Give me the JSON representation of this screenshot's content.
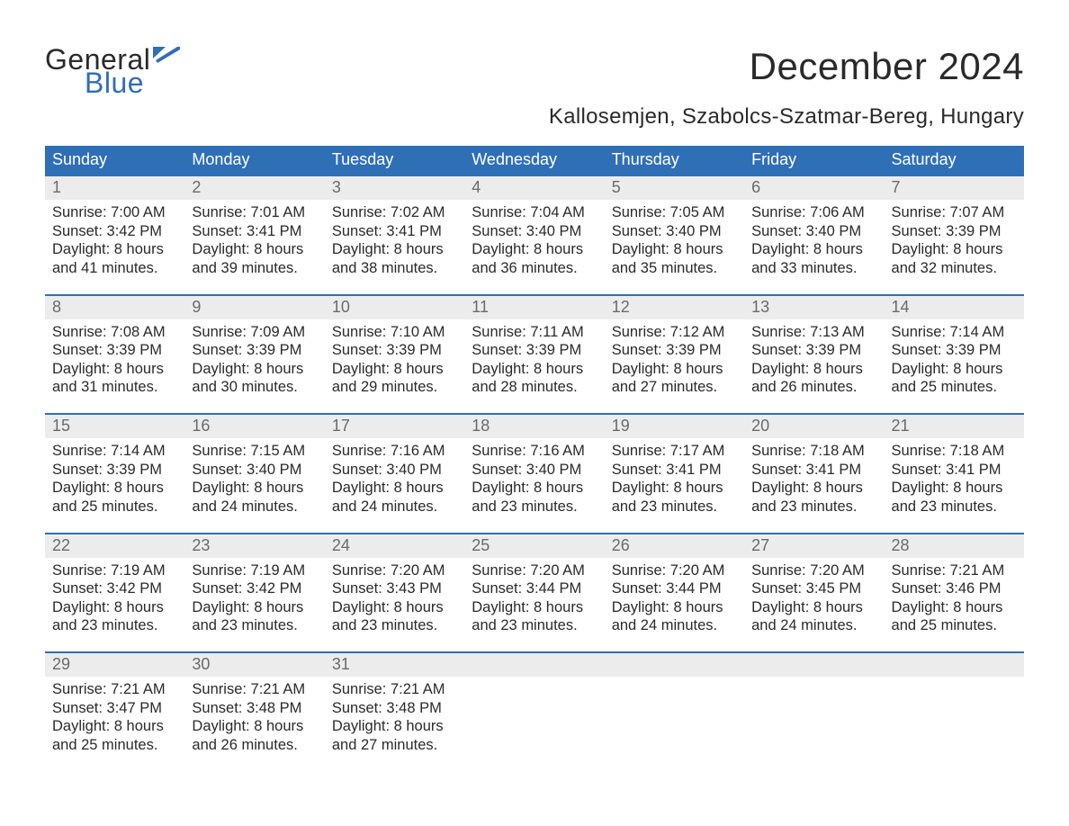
{
  "logo": {
    "word1": "General",
    "word2": "Blue",
    "word1_color": "#2a2a2a",
    "word2_color": "#2f6fb6",
    "flag_color": "#2f6fb6"
  },
  "title": "December 2024",
  "location": "Kallosemjen, Szabolcs-Szatmar-Bereg, Hungary",
  "colors": {
    "header_bg": "#2f6fb6",
    "header_fg": "#ffffff",
    "daynum_bg": "#ececec",
    "daynum_fg": "#6a6a6a",
    "week_border": "#2f6fb6",
    "body_text": "#2a2a2a",
    "page_bg": "#ffffff"
  },
  "fonts": {
    "title_pt": 42,
    "location_pt": 24,
    "weekday_pt": 18,
    "daynum_pt": 18,
    "cell_pt": 16.5
  },
  "weekdays": [
    "Sunday",
    "Monday",
    "Tuesday",
    "Wednesday",
    "Thursday",
    "Friday",
    "Saturday"
  ],
  "labels": {
    "sunrise": "Sunrise:",
    "sunset": "Sunset:",
    "daylight": "Daylight:"
  },
  "weeks": [
    [
      {
        "n": "1",
        "sunrise": "7:00 AM",
        "sunset": "3:42 PM",
        "dl1": "8 hours",
        "dl2": "and 41 minutes."
      },
      {
        "n": "2",
        "sunrise": "7:01 AM",
        "sunset": "3:41 PM",
        "dl1": "8 hours",
        "dl2": "and 39 minutes."
      },
      {
        "n": "3",
        "sunrise": "7:02 AM",
        "sunset": "3:41 PM",
        "dl1": "8 hours",
        "dl2": "and 38 minutes."
      },
      {
        "n": "4",
        "sunrise": "7:04 AM",
        "sunset": "3:40 PM",
        "dl1": "8 hours",
        "dl2": "and 36 minutes."
      },
      {
        "n": "5",
        "sunrise": "7:05 AM",
        "sunset": "3:40 PM",
        "dl1": "8 hours",
        "dl2": "and 35 minutes."
      },
      {
        "n": "6",
        "sunrise": "7:06 AM",
        "sunset": "3:40 PM",
        "dl1": "8 hours",
        "dl2": "and 33 minutes."
      },
      {
        "n": "7",
        "sunrise": "7:07 AM",
        "sunset": "3:39 PM",
        "dl1": "8 hours",
        "dl2": "and 32 minutes."
      }
    ],
    [
      {
        "n": "8",
        "sunrise": "7:08 AM",
        "sunset": "3:39 PM",
        "dl1": "8 hours",
        "dl2": "and 31 minutes."
      },
      {
        "n": "9",
        "sunrise": "7:09 AM",
        "sunset": "3:39 PM",
        "dl1": "8 hours",
        "dl2": "and 30 minutes."
      },
      {
        "n": "10",
        "sunrise": "7:10 AM",
        "sunset": "3:39 PM",
        "dl1": "8 hours",
        "dl2": "and 29 minutes."
      },
      {
        "n": "11",
        "sunrise": "7:11 AM",
        "sunset": "3:39 PM",
        "dl1": "8 hours",
        "dl2": "and 28 minutes."
      },
      {
        "n": "12",
        "sunrise": "7:12 AM",
        "sunset": "3:39 PM",
        "dl1": "8 hours",
        "dl2": "and 27 minutes."
      },
      {
        "n": "13",
        "sunrise": "7:13 AM",
        "sunset": "3:39 PM",
        "dl1": "8 hours",
        "dl2": "and 26 minutes."
      },
      {
        "n": "14",
        "sunrise": "7:14 AM",
        "sunset": "3:39 PM",
        "dl1": "8 hours",
        "dl2": "and 25 minutes."
      }
    ],
    [
      {
        "n": "15",
        "sunrise": "7:14 AM",
        "sunset": "3:39 PM",
        "dl1": "8 hours",
        "dl2": "and 25 minutes."
      },
      {
        "n": "16",
        "sunrise": "7:15 AM",
        "sunset": "3:40 PM",
        "dl1": "8 hours",
        "dl2": "and 24 minutes."
      },
      {
        "n": "17",
        "sunrise": "7:16 AM",
        "sunset": "3:40 PM",
        "dl1": "8 hours",
        "dl2": "and 24 minutes."
      },
      {
        "n": "18",
        "sunrise": "7:16 AM",
        "sunset": "3:40 PM",
        "dl1": "8 hours",
        "dl2": "and 23 minutes."
      },
      {
        "n": "19",
        "sunrise": "7:17 AM",
        "sunset": "3:41 PM",
        "dl1": "8 hours",
        "dl2": "and 23 minutes."
      },
      {
        "n": "20",
        "sunrise": "7:18 AM",
        "sunset": "3:41 PM",
        "dl1": "8 hours",
        "dl2": "and 23 minutes."
      },
      {
        "n": "21",
        "sunrise": "7:18 AM",
        "sunset": "3:41 PM",
        "dl1": "8 hours",
        "dl2": "and 23 minutes."
      }
    ],
    [
      {
        "n": "22",
        "sunrise": "7:19 AM",
        "sunset": "3:42 PM",
        "dl1": "8 hours",
        "dl2": "and 23 minutes."
      },
      {
        "n": "23",
        "sunrise": "7:19 AM",
        "sunset": "3:42 PM",
        "dl1": "8 hours",
        "dl2": "and 23 minutes."
      },
      {
        "n": "24",
        "sunrise": "7:20 AM",
        "sunset": "3:43 PM",
        "dl1": "8 hours",
        "dl2": "and 23 minutes."
      },
      {
        "n": "25",
        "sunrise": "7:20 AM",
        "sunset": "3:44 PM",
        "dl1": "8 hours",
        "dl2": "and 23 minutes."
      },
      {
        "n": "26",
        "sunrise": "7:20 AM",
        "sunset": "3:44 PM",
        "dl1": "8 hours",
        "dl2": "and 24 minutes."
      },
      {
        "n": "27",
        "sunrise": "7:20 AM",
        "sunset": "3:45 PM",
        "dl1": "8 hours",
        "dl2": "and 24 minutes."
      },
      {
        "n": "28",
        "sunrise": "7:21 AM",
        "sunset": "3:46 PM",
        "dl1": "8 hours",
        "dl2": "and 25 minutes."
      }
    ],
    [
      {
        "n": "29",
        "sunrise": "7:21 AM",
        "sunset": "3:47 PM",
        "dl1": "8 hours",
        "dl2": "and 25 minutes."
      },
      {
        "n": "30",
        "sunrise": "7:21 AM",
        "sunset": "3:48 PM",
        "dl1": "8 hours",
        "dl2": "and 26 minutes."
      },
      {
        "n": "31",
        "sunrise": "7:21 AM",
        "sunset": "3:48 PM",
        "dl1": "8 hours",
        "dl2": "and 27 minutes."
      },
      null,
      null,
      null,
      null
    ]
  ]
}
